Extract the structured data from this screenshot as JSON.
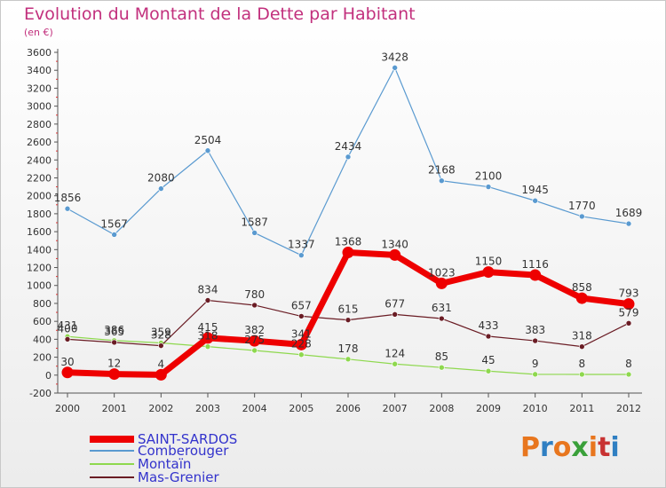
{
  "title": "Evolution du Montant de la Dette par Habitant",
  "subtitle": "(en €)",
  "logo": {
    "text": "Proxiti",
    "colors": [
      "#e8761e",
      "#2f7fc2",
      "#e8761e",
      "#3aa03a",
      "#e8761e",
      "#c83232",
      "#2f7fc2"
    ]
  },
  "chart_data": {
    "type": "line",
    "title": "Evolution du Montant de la Dette par Habitant",
    "ylabel": "(en €)",
    "xlabel": "",
    "x": [
      "2000",
      "2001",
      "2002",
      "2003",
      "2004",
      "2005",
      "2006",
      "2007",
      "2008",
      "2009",
      "2010",
      "2011",
      "2012"
    ],
    "ylim": [
      -200,
      3600
    ],
    "yticks": [
      -200,
      0,
      200,
      400,
      600,
      800,
      1000,
      1200,
      1400,
      1600,
      1800,
      2000,
      2200,
      2400,
      2600,
      2800,
      3000,
      3200,
      3400,
      3600
    ],
    "grid": false,
    "legend_position": "bottom-left",
    "series": [
      {
        "name": "SAINT-SARDOS",
        "color": "#ee0000",
        "emphasis": true,
        "values": [
          30,
          12,
          4,
          415,
          382,
          341,
          1368,
          1340,
          1023,
          1150,
          1116,
          858,
          793
        ],
        "labels": [
          "30",
          "12",
          "4",
          "415",
          "382",
          "341",
          "1368",
          "1340",
          "1023",
          "1150",
          "1116",
          "858",
          "793"
        ]
      },
      {
        "name": "Comberouger",
        "color": "#5a9ad0",
        "emphasis": false,
        "values": [
          1856,
          1567,
          2080,
          2504,
          1587,
          1337,
          2434,
          3428,
          2168,
          2100,
          1945,
          1770,
          1689
        ],
        "labels": [
          "1856",
          "1567",
          "2080",
          "2504",
          "1587",
          "1337",
          "2434",
          "3428",
          "2168",
          "2100",
          "1945",
          "1770",
          "1689"
        ]
      },
      {
        "name": "Montaïn",
        "color": "#8ed84e",
        "emphasis": false,
        "values": [
          431,
          386,
          359,
          318,
          275,
          228,
          178,
          124,
          85,
          45,
          9,
          8,
          8
        ],
        "labels": [
          "431",
          "386",
          "359",
          "318",
          "275",
          "228",
          "178",
          "124",
          "85",
          "45",
          "9",
          "8",
          "8"
        ]
      },
      {
        "name": "Mas-Grenier",
        "color": "#6a1c24",
        "emphasis": false,
        "values": [
          400,
          365,
          328,
          834,
          780,
          657,
          615,
          677,
          631,
          433,
          383,
          318,
          579
        ],
        "labels": [
          "400",
          "365",
          "328",
          "834",
          "780",
          "657",
          "615",
          "677",
          "631",
          "433",
          "383",
          "318",
          "579"
        ]
      }
    ]
  }
}
